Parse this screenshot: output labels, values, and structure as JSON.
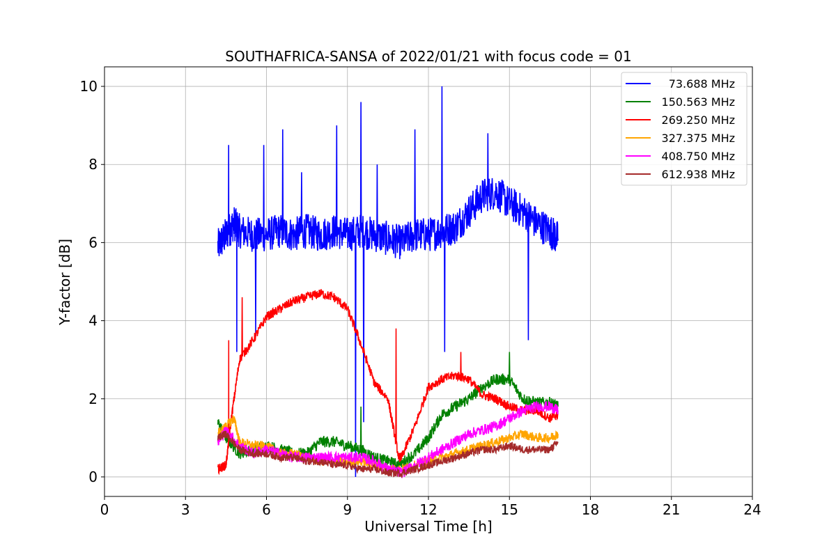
{
  "chart_data": {
    "type": "line",
    "title": "SOUTHAFRICA-SANSA of 2022/01/21 with focus code = 01",
    "xlabel": "Universal Time [h]",
    "ylabel": "Y-factor [dB]",
    "xlim": [
      0,
      24
    ],
    "ylim": [
      -0.5,
      10.5
    ],
    "xticks": [
      "0",
      "3",
      "6",
      "9",
      "12",
      "15",
      "18",
      "21",
      "24"
    ],
    "yticks": [
      "0",
      "2",
      "4",
      "6",
      "8",
      "10"
    ],
    "grid": true,
    "legend_position": "top-right",
    "series": [
      {
        "name": " 73.688 MHz",
        "color": "#0000ff",
        "x": [
          4.2,
          4.5,
          4.8,
          5.0,
          5.5,
          6.0,
          6.5,
          7.0,
          7.5,
          8.0,
          8.5,
          9.0,
          9.5,
          10.0,
          10.5,
          11.0,
          11.5,
          12.0,
          12.5,
          13.0,
          13.5,
          14.0,
          14.5,
          15.0,
          15.5,
          16.0,
          16.5,
          16.8
        ],
        "values": [
          5.9,
          6.2,
          6.5,
          6.3,
          6.2,
          6.2,
          6.3,
          6.2,
          6.3,
          6.2,
          6.3,
          6.2,
          6.3,
          6.2,
          6.1,
          6.0,
          6.2,
          6.2,
          6.3,
          6.4,
          6.8,
          7.2,
          7.3,
          7.0,
          6.8,
          6.5,
          6.3,
          6.1
        ],
        "spikes": [
          [
            4.6,
            8.5
          ],
          [
            4.9,
            3.2
          ],
          [
            5.6,
            3.6
          ],
          [
            5.9,
            8.5
          ],
          [
            6.6,
            8.9
          ],
          [
            7.3,
            7.8
          ],
          [
            8.6,
            9.0
          ],
          [
            9.3,
            0.0
          ],
          [
            9.5,
            9.6
          ],
          [
            9.6,
            1.4
          ],
          [
            10.1,
            8.0
          ],
          [
            11.5,
            8.9
          ],
          [
            12.5,
            10.0
          ],
          [
            12.6,
            3.2
          ],
          [
            14.2,
            8.8
          ],
          [
            15.7,
            3.5
          ]
        ]
      },
      {
        "name": "150.563 MHz",
        "color": "#008000",
        "x": [
          4.2,
          4.5,
          5.0,
          5.5,
          6.0,
          6.5,
          7.0,
          7.5,
          8.0,
          8.5,
          9.0,
          9.5,
          10.0,
          10.5,
          10.9,
          11.5,
          12.0,
          12.5,
          13.0,
          13.5,
          14.0,
          14.5,
          15.0,
          15.5,
          16.0,
          16.5,
          16.8
        ],
        "values": [
          1.4,
          1.0,
          0.6,
          0.7,
          0.8,
          0.7,
          0.6,
          0.6,
          0.9,
          0.9,
          0.8,
          0.7,
          0.5,
          0.4,
          0.3,
          0.6,
          1.0,
          1.6,
          1.8,
          2.0,
          2.3,
          2.5,
          2.5,
          2.0,
          1.9,
          1.9,
          1.8
        ],
        "spikes": [
          [
            9.5,
            1.8
          ],
          [
            15.0,
            3.2
          ]
        ]
      },
      {
        "name": "269.250 MHz",
        "color": "#ff0000",
        "x": [
          4.2,
          4.5,
          4.7,
          5.0,
          5.5,
          6.0,
          6.5,
          7.0,
          7.5,
          8.0,
          8.5,
          9.0,
          9.5,
          10.0,
          10.5,
          10.9,
          11.0,
          11.5,
          12.0,
          12.5,
          13.0,
          13.5,
          14.0,
          14.5,
          15.0,
          15.5,
          16.0,
          16.5,
          16.8
        ],
        "values": [
          0.2,
          0.3,
          1.5,
          3.0,
          3.5,
          4.1,
          4.3,
          4.5,
          4.6,
          4.7,
          4.6,
          4.3,
          3.4,
          2.4,
          2.0,
          0.5,
          0.5,
          1.3,
          2.3,
          2.5,
          2.6,
          2.5,
          2.1,
          2.0,
          1.8,
          1.7,
          1.7,
          1.5,
          1.6
        ],
        "spikes": [
          [
            4.6,
            3.5
          ],
          [
            5.1,
            4.6
          ],
          [
            10.8,
            3.8
          ],
          [
            13.2,
            3.2
          ]
        ]
      },
      {
        "name": "327.375 MHz",
        "color": "#ffa500",
        "x": [
          4.2,
          4.5,
          4.8,
          5.0,
          5.5,
          6.0,
          6.5,
          7.0,
          7.5,
          8.0,
          8.5,
          9.0,
          9.5,
          10.0,
          10.5,
          11.0,
          11.5,
          12.0,
          12.5,
          13.0,
          13.5,
          14.0,
          14.5,
          15.0,
          15.5,
          16.0,
          16.5,
          16.8
        ],
        "values": [
          1.1,
          1.3,
          1.5,
          0.9,
          0.8,
          0.8,
          0.6,
          0.6,
          0.5,
          0.4,
          0.4,
          0.4,
          0.4,
          0.3,
          0.2,
          0.2,
          0.3,
          0.4,
          0.5,
          0.6,
          0.7,
          0.8,
          0.9,
          1.0,
          1.1,
          1.0,
          1.0,
          1.1
        ]
      },
      {
        "name": "408.750 MHz",
        "color": "#ff00ff",
        "x": [
          4.2,
          4.5,
          5.0,
          5.5,
          6.0,
          6.5,
          7.0,
          7.5,
          8.0,
          8.5,
          9.0,
          9.5,
          10.0,
          10.5,
          11.0,
          11.5,
          12.0,
          12.5,
          13.0,
          13.5,
          14.0,
          14.5,
          15.0,
          15.5,
          16.0,
          16.5,
          16.8
        ],
        "values": [
          0.9,
          1.2,
          0.8,
          0.6,
          0.7,
          0.6,
          0.5,
          0.5,
          0.5,
          0.5,
          0.5,
          0.5,
          0.4,
          0.2,
          0.1,
          0.3,
          0.5,
          0.7,
          0.9,
          1.1,
          1.2,
          1.3,
          1.5,
          1.7,
          1.8,
          1.8,
          1.7
        ]
      },
      {
        "name": "612.938 MHz",
        "color": "#a52a2a",
        "x": [
          4.2,
          4.5,
          5.0,
          5.5,
          6.0,
          6.5,
          7.0,
          7.5,
          8.0,
          8.5,
          9.0,
          9.5,
          10.0,
          10.5,
          11.0,
          11.5,
          12.0,
          12.5,
          13.0,
          13.5,
          14.0,
          14.5,
          15.0,
          15.5,
          16.0,
          16.5,
          16.8
        ],
        "values": [
          1.0,
          1.1,
          0.7,
          0.6,
          0.6,
          0.5,
          0.5,
          0.4,
          0.4,
          0.3,
          0.3,
          0.2,
          0.2,
          0.1,
          0.1,
          0.2,
          0.3,
          0.4,
          0.5,
          0.6,
          0.7,
          0.7,
          0.8,
          0.7,
          0.7,
          0.7,
          0.9
        ]
      }
    ]
  }
}
